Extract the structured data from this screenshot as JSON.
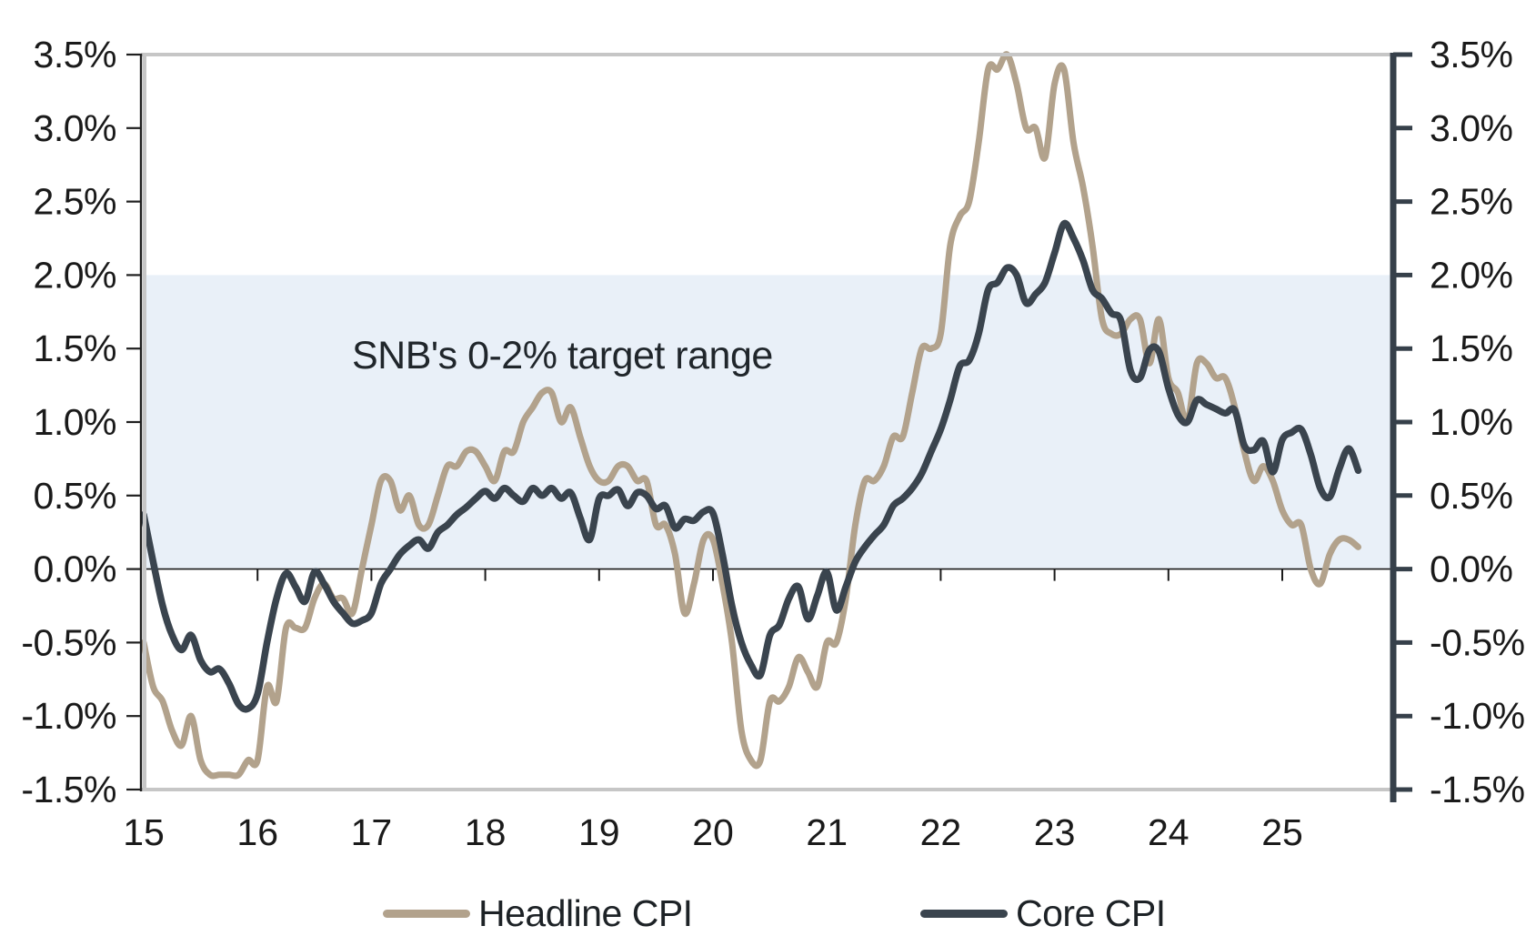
{
  "chart_data": {
    "type": "line",
    "title": "",
    "annotation": "SNB's 0-2% target range",
    "legend_position": "bottom",
    "grid": false,
    "x_axis": {
      "tick_labels": [
        "15",
        "16",
        "17",
        "18",
        "19",
        "20",
        "21",
        "22",
        "23",
        "24",
        "25"
      ],
      "tick_years": [
        2015,
        2016,
        2017,
        2018,
        2019,
        2020,
        2021,
        2022,
        2023,
        2024,
        2025
      ],
      "range_years": [
        2015.0,
        2026.0
      ]
    },
    "y_axis": {
      "tick_labels": [
        "3.5%",
        "3.0%",
        "2.5%",
        "2.0%",
        "1.5%",
        "1.0%",
        "0.5%",
        "0.0%",
        "-0.5%",
        "-1.0%",
        "-1.5%"
      ],
      "tick_values": [
        3.5,
        3.0,
        2.5,
        2.0,
        1.5,
        1.0,
        0.5,
        0.0,
        -0.5,
        -1.0,
        -1.5
      ],
      "min": -1.5,
      "max": 3.5,
      "unit": "%",
      "dual_sided": true
    },
    "target_band": {
      "from": 0.0,
      "to": 2.0,
      "label": "SNB's 0-2% target range",
      "color": "#e9f0f8"
    },
    "series": [
      {
        "name": "Headline CPI",
        "color": "#b2a28c",
        "frequency": "monthly",
        "start": "2015-01",
        "end": "2025-09",
        "values": [
          -0.5,
          -0.8,
          -0.9,
          -1.1,
          -1.2,
          -1.0,
          -1.3,
          -1.4,
          -1.4,
          -1.4,
          -1.4,
          -1.3,
          -1.3,
          -0.8,
          -0.9,
          -0.4,
          -0.4,
          -0.4,
          -0.2,
          -0.1,
          -0.2,
          -0.2,
          -0.3,
          0.0,
          0.3,
          0.6,
          0.6,
          0.4,
          0.5,
          0.3,
          0.3,
          0.5,
          0.7,
          0.7,
          0.8,
          0.8,
          0.7,
          0.6,
          0.8,
          0.8,
          1.0,
          1.1,
          1.2,
          1.2,
          1.0,
          1.1,
          0.9,
          0.7,
          0.6,
          0.6,
          0.7,
          0.7,
          0.6,
          0.6,
          0.3,
          0.3,
          0.1,
          -0.3,
          -0.1,
          0.2,
          0.2,
          -0.1,
          -0.5,
          -1.1,
          -1.3,
          -1.3,
          -0.9,
          -0.9,
          -0.8,
          -0.6,
          -0.7,
          -0.8,
          -0.5,
          -0.5,
          -0.2,
          0.3,
          0.6,
          0.6,
          0.7,
          0.9,
          0.9,
          1.2,
          1.5,
          1.5,
          1.6,
          2.2,
          2.4,
          2.5,
          2.9,
          3.4,
          3.4,
          3.5,
          3.3,
          3.0,
          3.0,
          2.8,
          3.3,
          3.4,
          2.9,
          2.6,
          2.2,
          1.7,
          1.6,
          1.6,
          1.7,
          1.7,
          1.4,
          1.7,
          1.3,
          1.2,
          1.0,
          1.4,
          1.4,
          1.3,
          1.3,
          1.1,
          0.8,
          0.6,
          0.7,
          0.6,
          0.4,
          0.3,
          0.3,
          0.0,
          -0.1,
          0.1,
          0.2,
          0.2,
          0.15
        ]
      },
      {
        "name": "Core CPI",
        "color": "#3a444e",
        "frequency": "monthly",
        "start": "2015-01",
        "end": "2025-09",
        "values": [
          0.37,
          0.05,
          -0.25,
          -0.45,
          -0.55,
          -0.45,
          -0.62,
          -0.7,
          -0.68,
          -0.78,
          -0.92,
          -0.95,
          -0.85,
          -0.5,
          -0.2,
          -0.03,
          -0.12,
          -0.22,
          -0.02,
          -0.1,
          -0.22,
          -0.3,
          -0.37,
          -0.35,
          -0.3,
          -0.1,
          0.0,
          0.1,
          0.16,
          0.2,
          0.14,
          0.25,
          0.3,
          0.37,
          0.42,
          0.48,
          0.53,
          0.48,
          0.55,
          0.5,
          0.46,
          0.55,
          0.5,
          0.55,
          0.48,
          0.52,
          0.35,
          0.2,
          0.48,
          0.5,
          0.54,
          0.43,
          0.52,
          0.5,
          0.41,
          0.43,
          0.28,
          0.34,
          0.33,
          0.39,
          0.38,
          0.1,
          -0.25,
          -0.5,
          -0.65,
          -0.72,
          -0.45,
          -0.38,
          -0.2,
          -0.12,
          -0.34,
          -0.18,
          -0.02,
          -0.28,
          -0.12,
          0.05,
          0.15,
          0.23,
          0.3,
          0.43,
          0.48,
          0.55,
          0.65,
          0.8,
          0.95,
          1.15,
          1.38,
          1.42,
          1.6,
          1.9,
          1.95,
          2.05,
          2.0,
          1.81,
          1.87,
          1.95,
          2.15,
          2.35,
          2.25,
          2.1,
          1.9,
          1.84,
          1.74,
          1.69,
          1.35,
          1.3,
          1.49,
          1.48,
          1.23,
          1.05,
          1.0,
          1.15,
          1.12,
          1.09,
          1.06,
          1.08,
          0.84,
          0.81,
          0.87,
          0.66,
          0.88,
          0.93,
          0.95,
          0.78,
          0.55,
          0.49,
          0.68,
          0.82,
          0.67
        ]
      }
    ],
    "colors": {
      "frame_gray": "#c6c6c6",
      "left_axis": "#1f1f1f",
      "right_axis": "#36404a",
      "zero_line": "#1a1a1a",
      "tick_text": "#1a1a1a",
      "annotation_text": "#20262b",
      "background": "#ffffff"
    }
  },
  "legend": {
    "headline_label": "Headline CPI",
    "core_label": "Core CPI"
  }
}
